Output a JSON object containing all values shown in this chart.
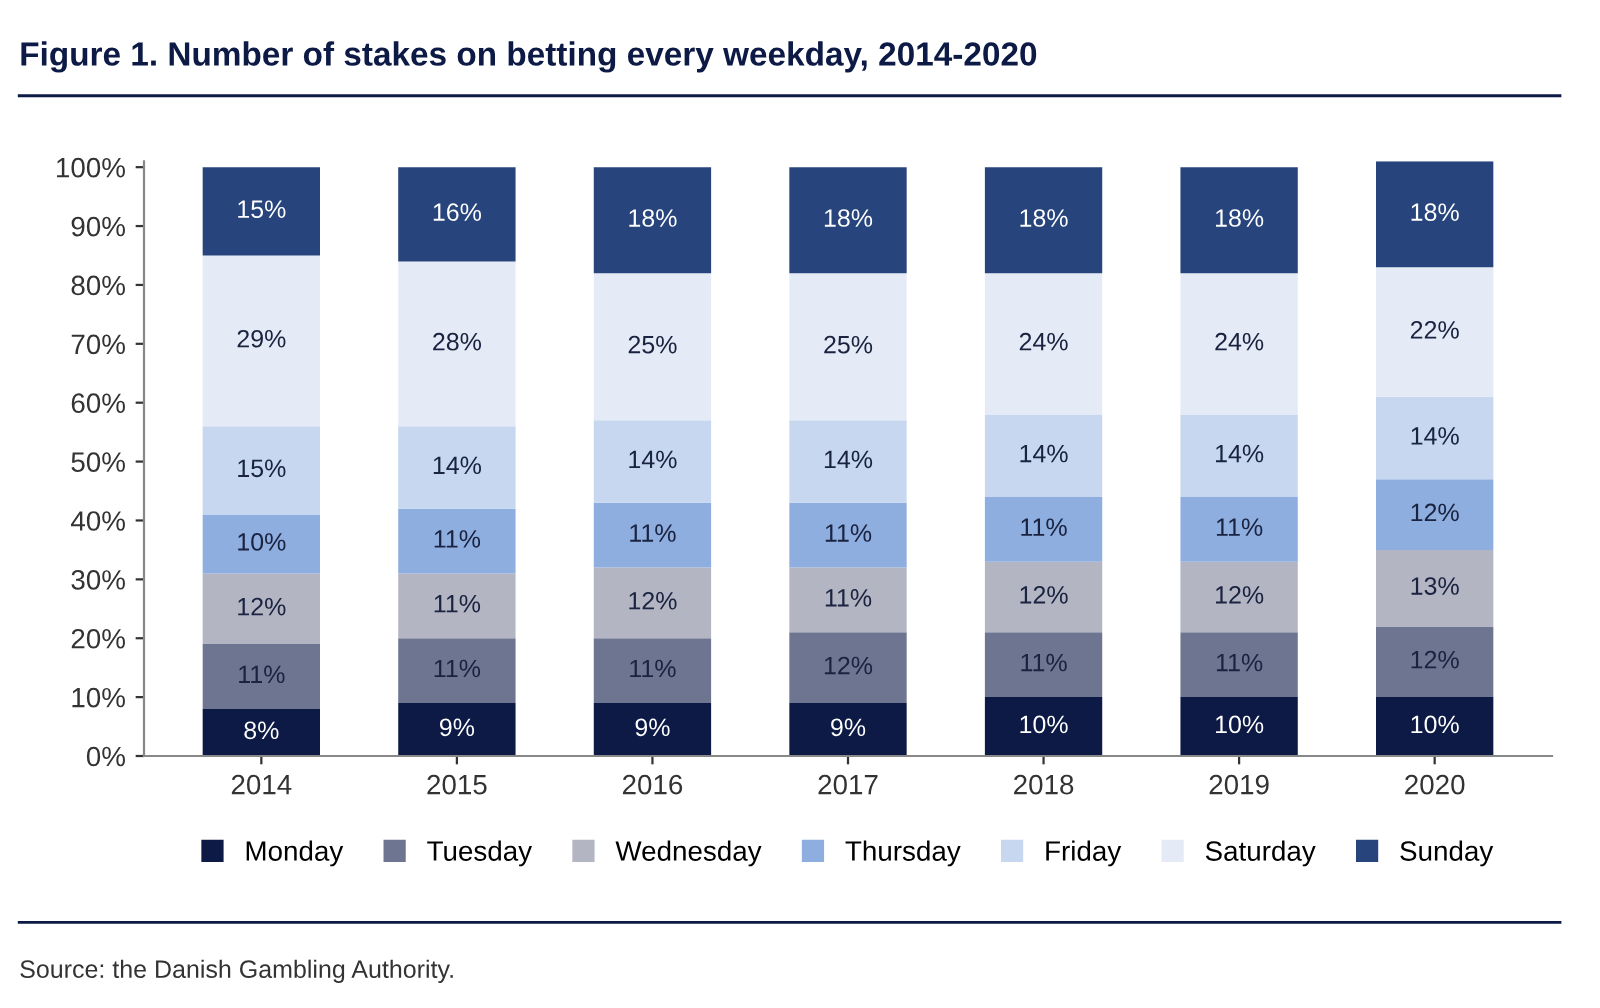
{
  "chart_data": {
    "type": "bar",
    "stacked": true,
    "title": "Figure 1. Number of stakes on betting every weekday, 2014-2020",
    "categories": [
      "2014",
      "2015",
      "2016",
      "2017",
      "2018",
      "2019",
      "2020"
    ],
    "series": [
      {
        "name": "Monday",
        "color": "#0d1a45",
        "values": [
          8,
          9,
          9,
          9,
          10,
          10,
          10
        ],
        "value_labels": [
          "8%",
          "9%",
          "9%",
          "9%",
          "10%",
          "10%",
          "10%"
        ]
      },
      {
        "name": "Tuesday",
        "color": "#6e7591",
        "values": [
          11,
          11,
          11,
          12,
          11,
          11,
          12
        ],
        "value_labels": [
          "11%",
          "11%",
          "11%",
          "12%",
          "11%",
          "11%",
          "12%"
        ]
      },
      {
        "name": "Wednesday",
        "color": "#b3b5c3",
        "values": [
          12,
          11,
          12,
          11,
          12,
          12,
          13
        ],
        "value_labels": [
          "12%",
          "11%",
          "12%",
          "11%",
          "12%",
          "12%",
          "13%"
        ]
      },
      {
        "name": "Thursday",
        "color": "#8faee0",
        "values": [
          10,
          11,
          11,
          11,
          11,
          11,
          12
        ],
        "value_labels": [
          "10%",
          "11%",
          "11%",
          "11%",
          "11%",
          "11%",
          "12%"
        ]
      },
      {
        "name": "Friday",
        "color": "#c6d7ef",
        "values": [
          15,
          14,
          14,
          14,
          14,
          14,
          14
        ],
        "value_labels": [
          "15%",
          "14%",
          "14%",
          "14%",
          "14%",
          "14%",
          "14%"
        ]
      },
      {
        "name": "Saturday",
        "color": "#e4ebf6",
        "values": [
          29,
          28,
          25,
          25,
          24,
          24,
          22
        ],
        "value_labels": [
          "29%",
          "28%",
          "25%",
          "25%",
          "24%",
          "24%",
          "22%"
        ]
      },
      {
        "name": "Sunday",
        "color": "#27457c",
        "values": [
          15,
          16,
          18,
          18,
          18,
          18,
          18
        ],
        "value_labels": [
          "15%",
          "16%",
          "18%",
          "18%",
          "18%",
          "18%",
          "18%"
        ]
      }
    ],
    "ylim": [
      0,
      101
    ],
    "yticks": [
      {
        "value": 0,
        "label": "0%"
      },
      {
        "value": 10,
        "label": "10%"
      },
      {
        "value": 20,
        "label": "20%"
      },
      {
        "value": 30,
        "label": "30%"
      },
      {
        "value": 40,
        "label": "40%"
      },
      {
        "value": 50,
        "label": "50%"
      },
      {
        "value": 60,
        "label": "60%"
      },
      {
        "value": 70,
        "label": "70%"
      },
      {
        "value": 80,
        "label": "80%"
      },
      {
        "value": 90,
        "label": "90%"
      },
      {
        "value": 100,
        "label": "100%"
      }
    ],
    "grid": false,
    "legend": "bottom",
    "annotations": [
      "Source: the Danish Gambling Authority."
    ]
  }
}
